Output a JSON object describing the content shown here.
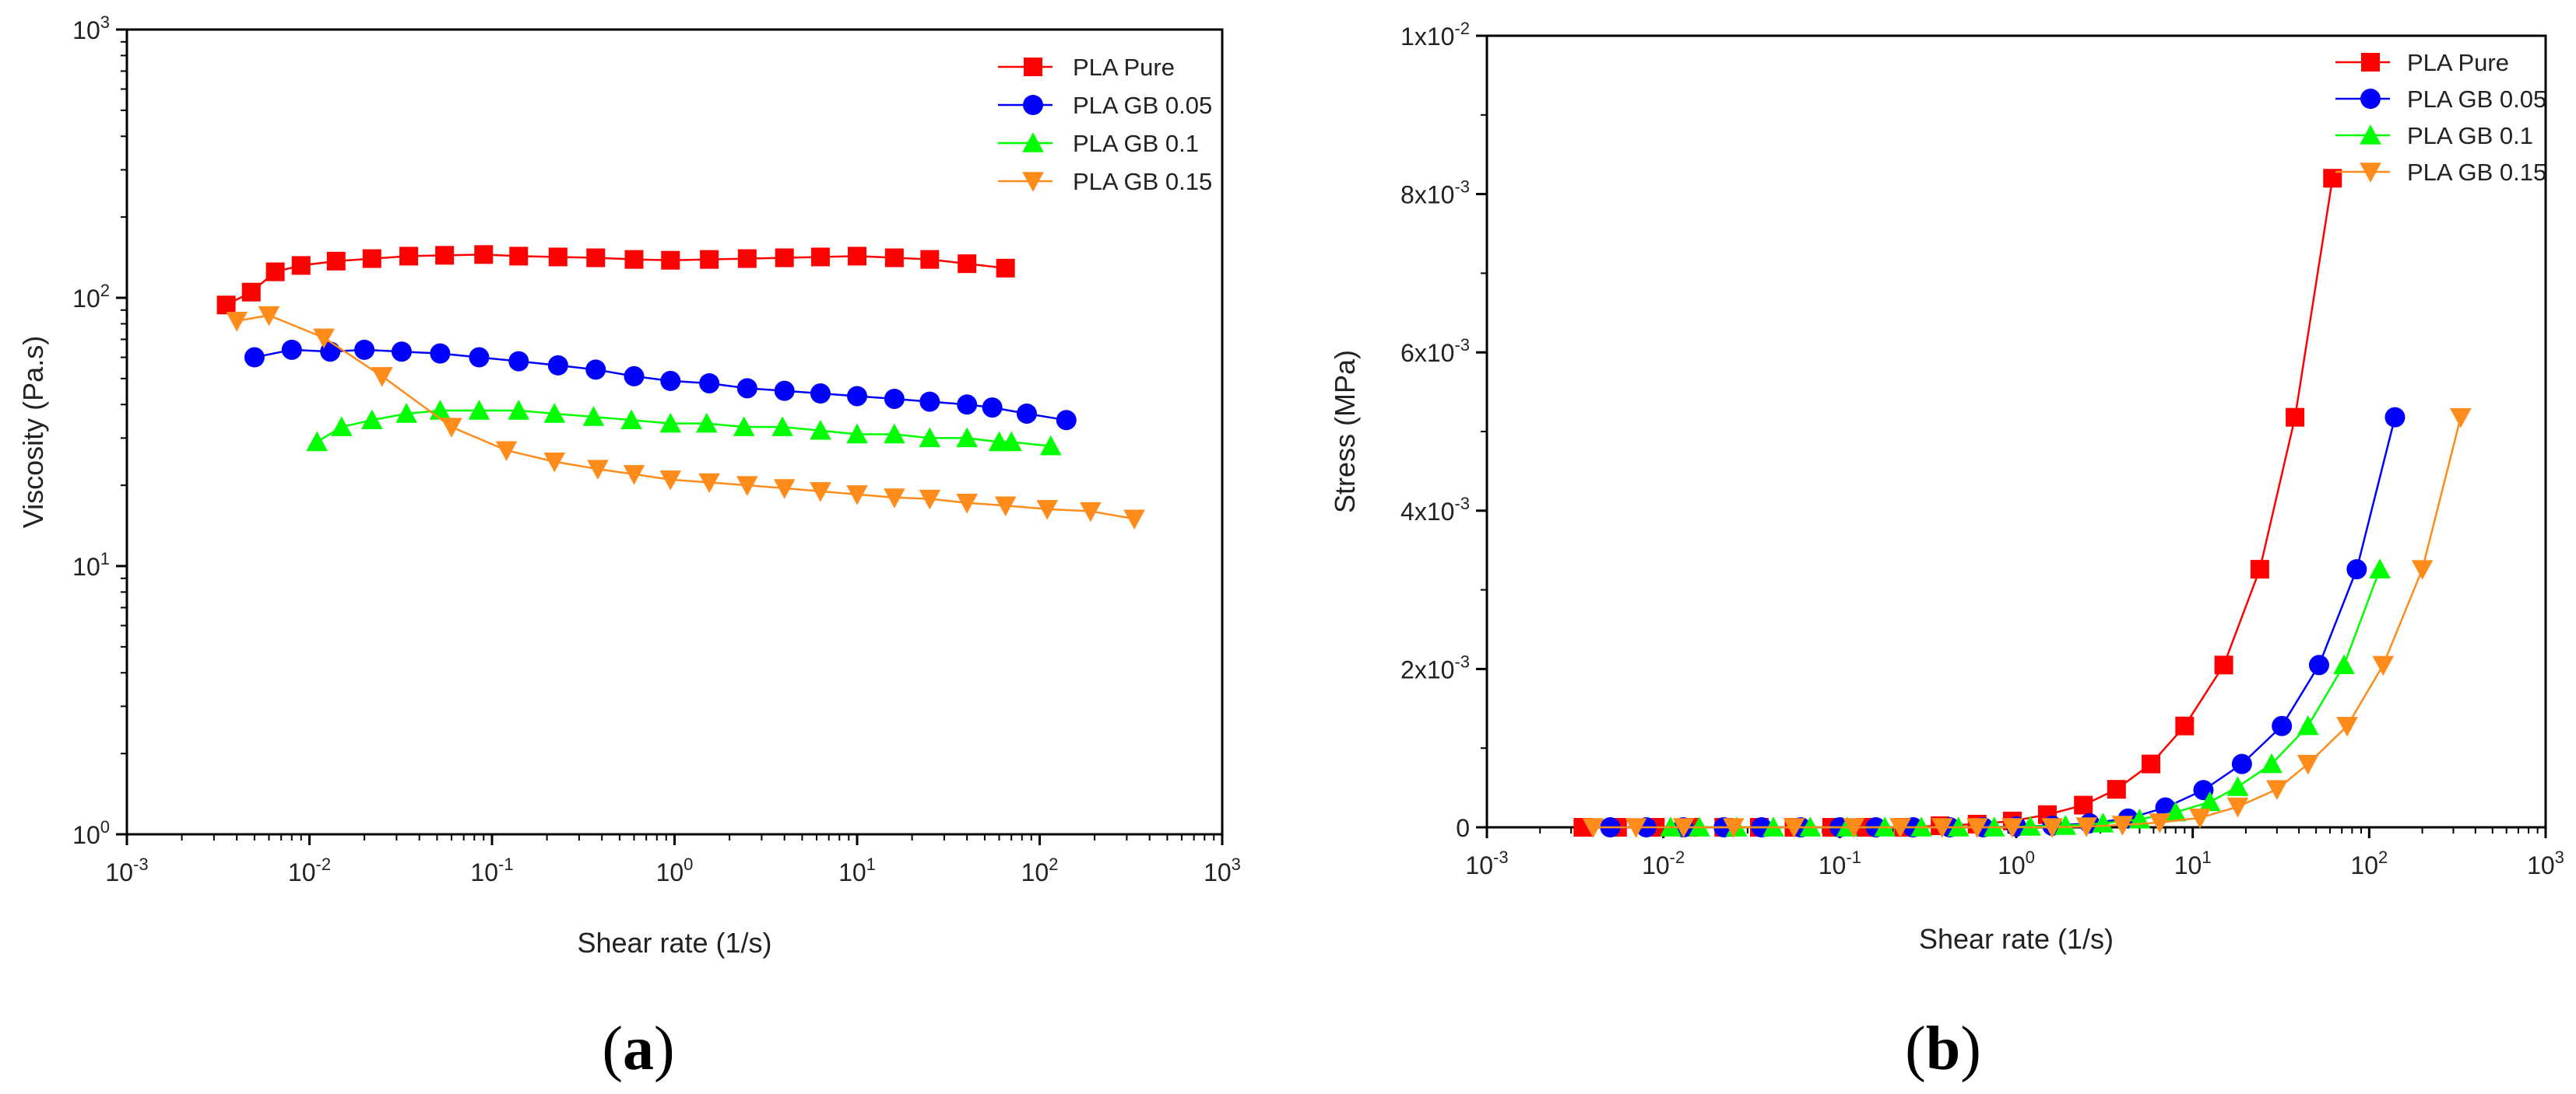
{
  "chart_data": [
    {
      "id": "a",
      "type": "line",
      "panel_label": "a",
      "xscale": "log",
      "yscale": "log",
      "xlabel": "Shear rate (1/s)",
      "ylabel": "Viscosity (Pa.s)",
      "xlim": [
        0.001,
        1000
      ],
      "ylim": [
        1,
        1000
      ],
      "xticks": [
        {
          "value": 0.001,
          "base": "10",
          "exp": "-3"
        },
        {
          "value": 0.01,
          "base": "10",
          "exp": "-2"
        },
        {
          "value": 0.1,
          "base": "10",
          "exp": "-1"
        },
        {
          "value": 1,
          "base": "10",
          "exp": "0"
        },
        {
          "value": 10,
          "base": "10",
          "exp": "1"
        },
        {
          "value": 100,
          "base": "10",
          "exp": "2"
        },
        {
          "value": 1000,
          "base": "10",
          "exp": "3"
        }
      ],
      "yticks": [
        {
          "value": 1,
          "base": "10",
          "exp": "0"
        },
        {
          "value": 10,
          "base": "10",
          "exp": "1"
        },
        {
          "value": 100,
          "base": "10",
          "exp": "2"
        },
        {
          "value": 1000,
          "base": "10",
          "exp": "3"
        }
      ],
      "legend_position": "top-right",
      "series": [
        {
          "name": "PLA Pure",
          "color": "#ff0000",
          "marker": "square",
          "x": [
            0.0035,
            0.0048,
            0.0065,
            0.009,
            0.014,
            0.022,
            0.035,
            0.055,
            0.09,
            0.14,
            0.23,
            0.37,
            0.6,
            0.95,
            1.55,
            2.5,
            4,
            6.3,
            10,
            16,
            25,
            40,
            65
          ],
          "y": [
            94,
            105,
            125,
            132,
            137,
            140,
            143,
            144,
            145,
            143,
            142,
            141,
            139,
            138,
            139,
            140,
            141,
            142,
            143,
            141,
            139,
            134,
            129
          ]
        },
        {
          "name": "PLA GB 0.05",
          "color": "#0000ff",
          "marker": "circle",
          "x": [
            0.005,
            0.008,
            0.013,
            0.02,
            0.032,
            0.052,
            0.085,
            0.14,
            0.23,
            0.37,
            0.6,
            0.95,
            1.55,
            2.5,
            4,
            6.3,
            10,
            16,
            25,
            40,
            55,
            85,
            140
          ],
          "y": [
            60,
            64,
            63,
            64,
            63,
            62,
            60,
            58,
            56,
            54,
            51,
            49,
            48,
            46,
            45,
            44,
            43,
            42,
            41,
            40,
            39,
            37,
            35
          ]
        },
        {
          "name": "PLA GB 0.1",
          "color": "#00ff00",
          "marker": "triangle-up",
          "x": [
            0.011,
            0.015,
            0.022,
            0.034,
            0.052,
            0.085,
            0.14,
            0.22,
            0.36,
            0.58,
            0.95,
            1.5,
            2.4,
            3.9,
            6.3,
            10,
            16,
            25,
            40,
            60,
            70,
            115
          ],
          "y": [
            29,
            33,
            35,
            37,
            38,
            38,
            38,
            37,
            36,
            35,
            34,
            34,
            33,
            33,
            32,
            31,
            31,
            30,
            30,
            29,
            29,
            28
          ]
        },
        {
          "name": "PLA GB 0.15",
          "color": "#ff8c1a",
          "marker": "triangle-down",
          "x": [
            0.004,
            0.006,
            0.012,
            0.025,
            0.06,
            0.12,
            0.22,
            0.38,
            0.6,
            0.95,
            1.55,
            2.5,
            4,
            6.3,
            10,
            16,
            25,
            40,
            65,
            110,
            190,
            330
          ],
          "y": [
            82,
            86,
            71,
            51,
            33,
            27,
            24.5,
            23,
            22,
            21,
            20.5,
            20,
            19.5,
            19,
            18.5,
            18,
            17.8,
            17.2,
            16.8,
            16.3,
            16,
            15
          ]
        }
      ]
    },
    {
      "id": "b",
      "type": "line",
      "panel_label": "b",
      "xscale": "log",
      "yscale": "linear",
      "xlabel": "Shear rate (1/s)",
      "ylabel": "Stress (MPa)",
      "xlim": [
        0.001,
        1000
      ],
      "ylim": [
        0,
        0.01
      ],
      "xticks": [
        {
          "value": 0.001,
          "base": "10",
          "exp": "-3"
        },
        {
          "value": 0.01,
          "base": "10",
          "exp": "-2"
        },
        {
          "value": 0.1,
          "base": "10",
          "exp": "-1"
        },
        {
          "value": 1,
          "base": "10",
          "exp": "0"
        },
        {
          "value": 10,
          "base": "10",
          "exp": "1"
        },
        {
          "value": 100,
          "base": "10",
          "exp": "2"
        },
        {
          "value": 1000,
          "base": "10",
          "exp": "3"
        }
      ],
      "yticks": [
        {
          "value": 0,
          "base": "0",
          "exp": ""
        },
        {
          "value": 0.002,
          "base": "2x10",
          "exp": "-3"
        },
        {
          "value": 0.004,
          "base": "4x10",
          "exp": "-3"
        },
        {
          "value": 0.006,
          "base": "6x10",
          "exp": "-3"
        },
        {
          "value": 0.008,
          "base": "8x10",
          "exp": "-3"
        },
        {
          "value": 0.01,
          "base": "1x10",
          "exp": "-2"
        }
      ],
      "legend_position": "top-right",
      "series": [
        {
          "name": "PLA Pure",
          "color": "#ff0000",
          "marker": "square",
          "x": [
            0.0035,
            0.0055,
            0.009,
            0.014,
            0.022,
            0.035,
            0.055,
            0.09,
            0.14,
            0.23,
            0.37,
            0.6,
            0.95,
            1.5,
            2.4,
            3.7,
            5.8,
            9,
            15,
            24,
            38,
            62
          ],
          "y": [
            0,
            0,
            0,
            0,
            0,
            0,
            0,
            0,
            0,
            0,
            2e-05,
            4e-05,
            8e-05,
            0.00016,
            0.00028,
            0.00048,
            0.0008,
            0.00128,
            0.00205,
            0.00326,
            0.00518,
            0.0082
          ]
        },
        {
          "name": "PLA GB 0.05",
          "color": "#0000ff",
          "marker": "circle",
          "x": [
            0.005,
            0.008,
            0.013,
            0.022,
            0.036,
            0.06,
            0.1,
            0.16,
            0.26,
            0.42,
            0.65,
            1,
            1.6,
            2.6,
            4.3,
            7,
            11.5,
            19,
            32,
            52,
            85,
            140
          ],
          "y": [
            0,
            0,
            0,
            0,
            0,
            0,
            0,
            0,
            0,
            0,
            0,
            1e-05,
            2e-05,
            5e-05,
            0.00011,
            0.00025,
            0.00047,
            0.0008,
            0.00128,
            0.00205,
            0.00326,
            0.00518
          ]
        },
        {
          "name": "PLA GB 0.1",
          "color": "#00ff00",
          "marker": "triangle-up",
          "x": [
            0.011,
            0.016,
            0.026,
            0.042,
            0.068,
            0.11,
            0.18,
            0.29,
            0.47,
            0.75,
            1.2,
            1.9,
            3.1,
            5,
            8,
            12.5,
            18,
            28,
            45,
            72,
            115
          ],
          "y": [
            0,
            0,
            0,
            0,
            0,
            0,
            0,
            0,
            0,
            0,
            1e-05,
            2e-05,
            5e-05,
            0.0001,
            0.00019,
            0.00032,
            0.00051,
            0.0008,
            0.00128,
            0.00205,
            0.00326
          ]
        },
        {
          "name": "PLA GB 0.15",
          "color": "#ff8c1a",
          "marker": "triangle-down",
          "x": [
            0.004,
            0.007,
            0.013,
            0.025,
            0.055,
            0.12,
            0.22,
            0.38,
            0.6,
            0.95,
            1.6,
            2.5,
            4,
            6.5,
            11,
            18,
            30,
            45,
            75,
            120,
            200,
            330
          ],
          "y": [
            0,
            0,
            0,
            0,
            0,
            0,
            0,
            0,
            0,
            0,
            0,
            1e-05,
            3e-05,
            6e-05,
            0.00012,
            0.00026,
            0.00048,
            0.0008,
            0.00128,
            0.00205,
            0.00326,
            0.00518
          ]
        }
      ]
    }
  ]
}
